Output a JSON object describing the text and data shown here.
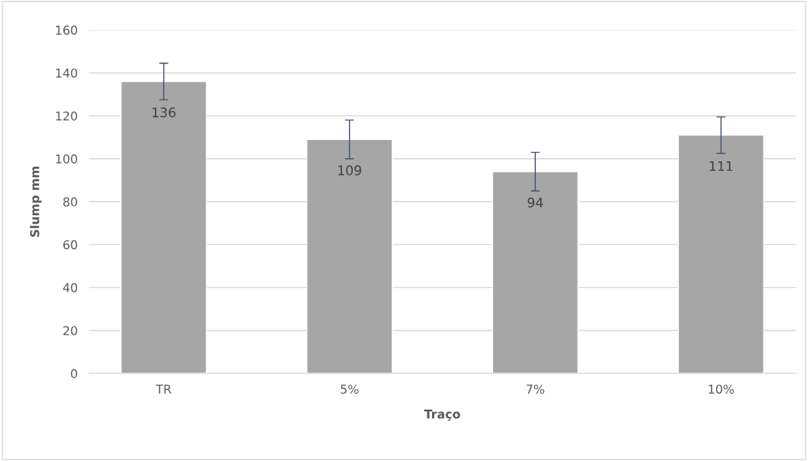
{
  "chart_data": {
    "type": "bar",
    "xlabel": "Traço",
    "ylabel": "Slump mm",
    "categories": [
      "TR",
      "5%",
      "7%",
      "10%"
    ],
    "values": [
      136,
      109,
      94,
      111
    ],
    "errors": [
      8.5,
      9,
      9,
      8.5
    ],
    "color": "#a6a6a6",
    "data_labels": true,
    "ylim": [
      0,
      160
    ],
    "yticks": [
      0,
      20,
      40,
      60,
      80,
      100,
      120,
      140,
      160
    ],
    "grid": "y",
    "legend": false
  }
}
